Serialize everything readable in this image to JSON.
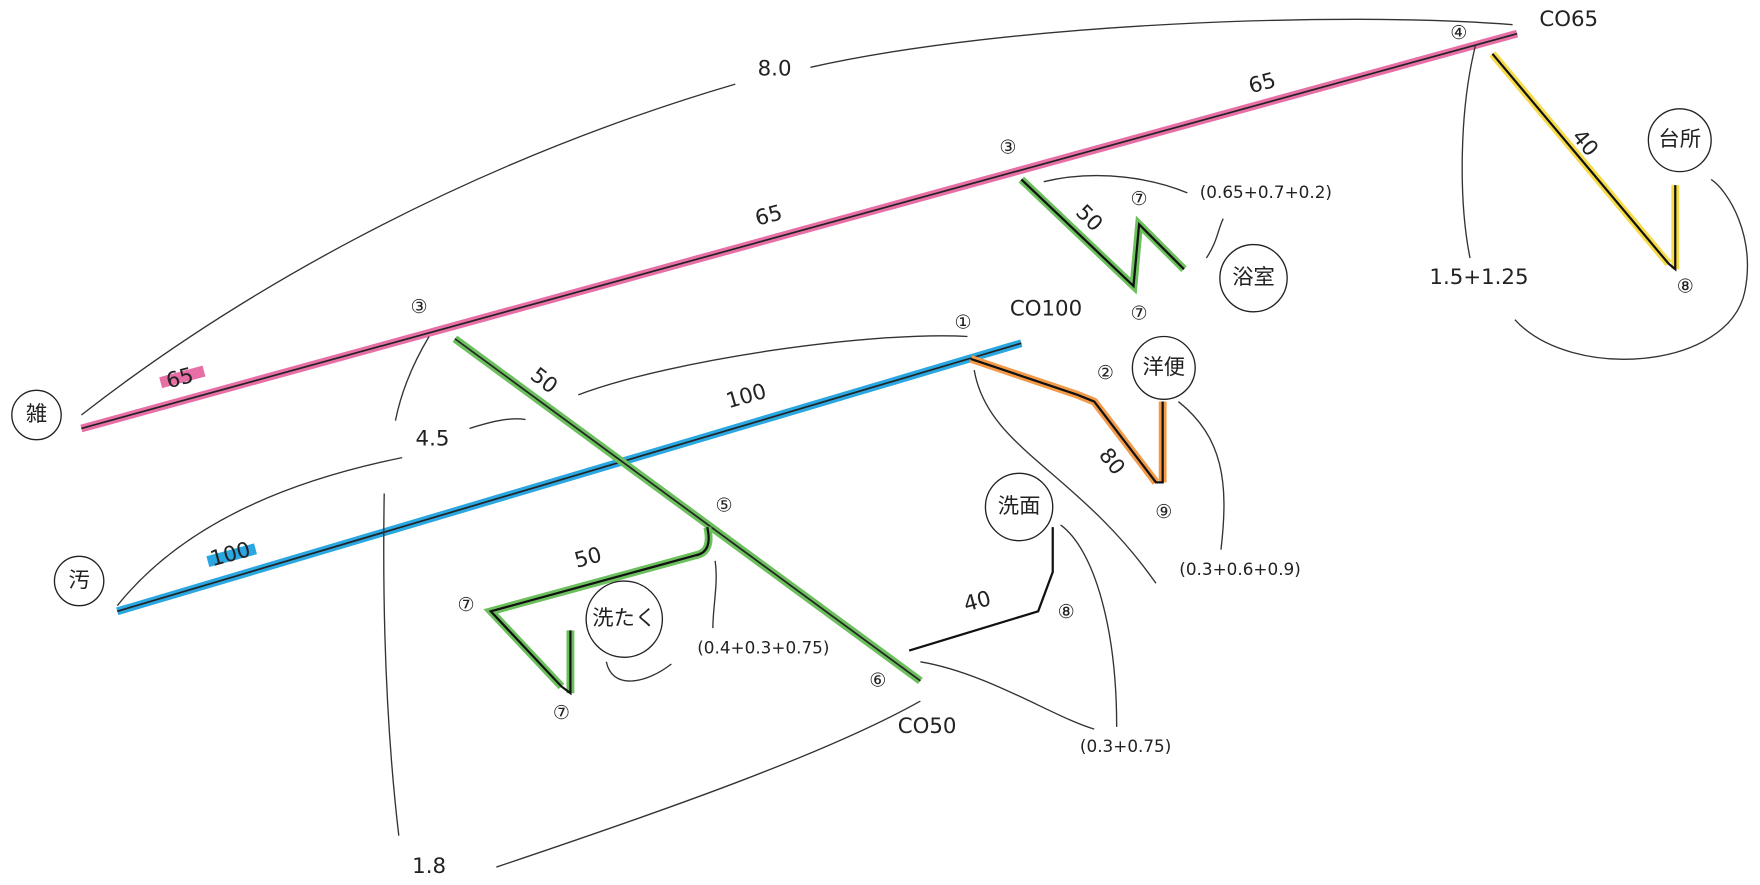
{
  "rooms": [
    "台所",
    "浴室",
    "洋便",
    "雑",
    "洗面",
    "汚",
    "洗たく"
  ],
  "pipe_sizes": [
    "65",
    "40",
    "65",
    "50",
    "65",
    "50",
    "100",
    "80",
    "50",
    "100",
    "40"
  ],
  "fittings": [
    "④",
    "③",
    "⑦",
    "⑦",
    "⑧",
    "③",
    "①",
    "②",
    "⑨",
    "⑤",
    "⑦",
    "⑧",
    "⑥",
    "⑦"
  ],
  "dimensions": [
    "8.0",
    "(0.65+0.7+0.2)",
    "1.5+1.25",
    "4.5",
    "(0.3+0.6+0.9)",
    "(0.4+0.3+0.75)",
    "(0.3+0.75)",
    "1.8"
  ],
  "cleanouts": [
    "CO65",
    "CO100",
    "CO50"
  ]
}
